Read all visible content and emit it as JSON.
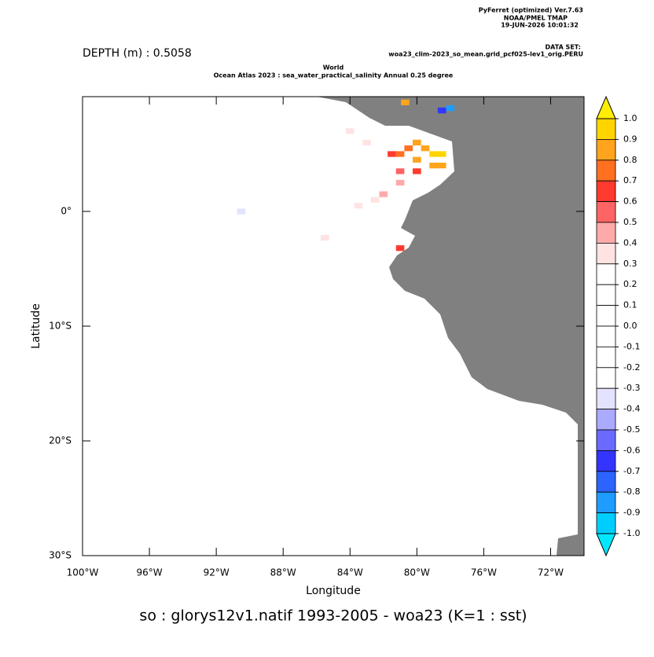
{
  "chart_data": {
    "type": "map",
    "header": [
      "PyFerret (optimized) Ver.7.63",
      "NOAA/PMEL TMAP",
      "19-JUN-2026 10:01:32"
    ],
    "dataset_label": "DATA SET:",
    "dataset": "woa23_clim-2023_so_mean.grid_pcf025-lev1_orig.PERU",
    "depth": "DEPTH (m) : 0.5058",
    "title": "World",
    "subtitle": "Ocean Atlas 2023 : sea_water_practical_salinity Annual  0.25 degree",
    "xlabel": "Longitude",
    "ylabel": "Latitude",
    "caption": "so : glorys12v1.natif 1993-2005     - woa23  (K=1 : sst)",
    "xlim": [
      -100,
      -70
    ],
    "ylim": [
      -30,
      10
    ],
    "xticks": [
      {
        "value": -100,
        "label": "100°W"
      },
      {
        "value": -96,
        "label": "96°W"
      },
      {
        "value": -92,
        "label": "92°W"
      },
      {
        "value": -88,
        "label": "88°W"
      },
      {
        "value": -84,
        "label": "84°W"
      },
      {
        "value": -80,
        "label": "80°W"
      },
      {
        "value": -76,
        "label": "76°W"
      },
      {
        "value": -72,
        "label": "72°W"
      }
    ],
    "yticks": [
      {
        "value": 0,
        "label": "0°"
      },
      {
        "value": -10,
        "label": "10°S"
      },
      {
        "value": -20,
        "label": "20°S"
      },
      {
        "value": -30,
        "label": "30°S"
      }
    ],
    "land_color": "#808080",
    "colorbar": {
      "ticks": [
        {
          "value": 1,
          "label": "1.0"
        },
        0.9,
        0.8,
        0.7,
        0.6,
        0.5,
        0.4,
        0.3,
        0.2,
        0.1,
        {
          "value": 0,
          "label": "0.0"
        },
        -0.1,
        -0.2,
        -0.3,
        -0.4,
        -0.5,
        -0.6,
        -0.7,
        -0.8,
        -0.9,
        {
          "value": -1,
          "label": "-1.0"
        }
      ],
      "colors": [
        "#ffd400",
        "#ffa41c",
        "#ff7020",
        "#ff3a2e",
        "#ff6464",
        "#ffaaaa",
        "#ffe3e3",
        "#ffffff",
        "#ffffff",
        "#ffffff",
        "#ffffff",
        "#ffffff",
        "#ffffff",
        "#e3e3ff",
        "#aaaaff",
        "#6a6aff",
        "#3434ff",
        "#2c64ff",
        "#1e9cff",
        "#00cdff"
      ],
      "over_color": "#ffee00",
      "under_color": "#00e8ff"
    },
    "cells": {
      "lon": [
        -80,
        -79.5,
        -79,
        -78.5,
        -80.5,
        -81,
        -80,
        -79,
        -78.5,
        -81.5,
        -80,
        -81,
        -81,
        -82,
        -82.5,
        -83,
        -84,
        -83.5,
        -85.5,
        -81,
        -80.7,
        -78,
        -78.5,
        -90.5
      ],
      "lat": [
        6,
        5.5,
        5,
        5,
        5.5,
        5,
        4.5,
        4,
        4,
        5,
        3.5,
        3.5,
        2.5,
        1.5,
        1,
        6,
        7,
        0.5,
        -2.3,
        -3.2,
        9.5,
        9,
        8.8,
        0
      ],
      "values": [
        0.8,
        0.85,
        0.9,
        0.95,
        0.75,
        0.7,
        0.8,
        0.85,
        0.8,
        0.6,
        0.6,
        0.55,
        0.45,
        0.4,
        0.35,
        0.35,
        0.35,
        0.35,
        0.35,
        0.65,
        0.8,
        -0.9,
        -0.7,
        -0.35
      ]
    }
  }
}
